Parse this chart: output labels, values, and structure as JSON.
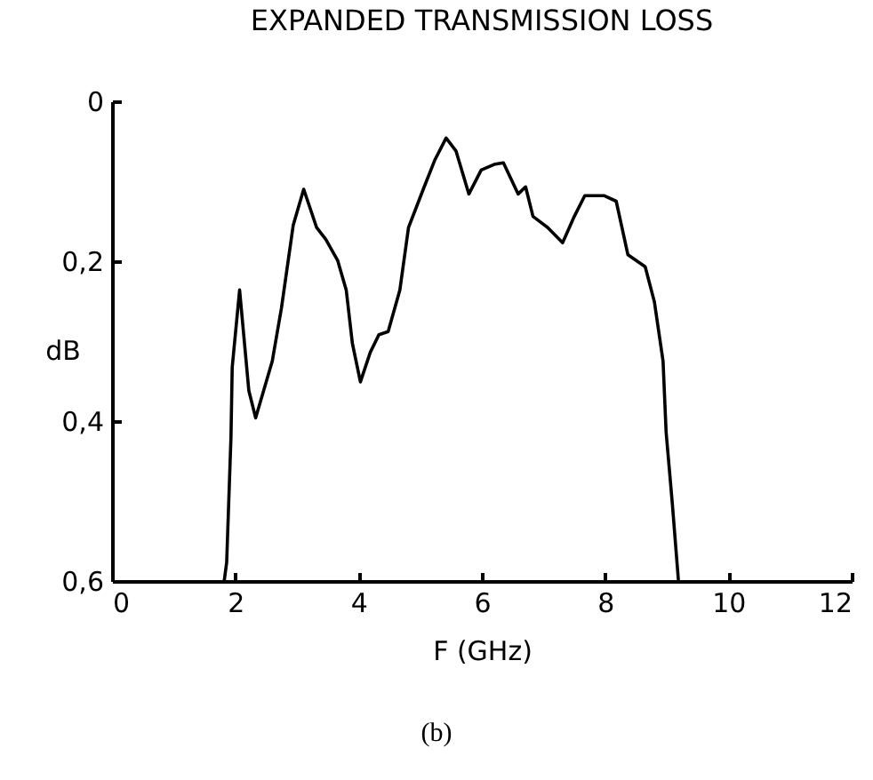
{
  "chart_data": {
    "type": "line",
    "title": "EXPANDED TRANSMISSION LOSS",
    "xlabel": "F (GHz)",
    "ylabel": "dB",
    "x": [
      1.82,
      1.86,
      1.93,
      1.95,
      2.07,
      2.22,
      2.33,
      2.6,
      2.75,
      2.94,
      3.11,
      3.32,
      3.47,
      3.66,
      3.8,
      3.9,
      4.03,
      4.19,
      4.33,
      4.48,
      4.67,
      4.81,
      5.05,
      5.24,
      5.42,
      5.58,
      5.79,
      5.99,
      6.2,
      6.35,
      6.59,
      6.71,
      6.83,
      7.07,
      7.31,
      7.5,
      7.67,
      7.98,
      8.18,
      8.37,
      8.65,
      8.8,
      8.94,
      8.99,
      9.09,
      9.19
    ],
    "series": [
      {
        "color": "#000000",
        "values": [
          0.6,
          0.577,
          0.42,
          0.333,
          0.236,
          0.362,
          0.396,
          0.325,
          0.258,
          0.155,
          0.11,
          0.158,
          0.173,
          0.199,
          0.236,
          0.303,
          0.351,
          0.314,
          0.292,
          0.288,
          0.236,
          0.158,
          0.11,
          0.073,
          0.046,
          0.062,
          0.116,
          0.086,
          0.079,
          0.077,
          0.116,
          0.107,
          0.144,
          0.158,
          0.177,
          0.144,
          0.118,
          0.118,
          0.125,
          0.192,
          0.207,
          0.251,
          0.325,
          0.414,
          0.503,
          0.6
        ]
      }
    ],
    "xlim": [
      0,
      12
    ],
    "xticks": [
      0,
      2,
      4,
      6,
      8,
      10,
      12
    ],
    "ylim": [
      0.6,
      0
    ],
    "yticks": [
      0,
      {
        "value": 0.2,
        "label": "0,2"
      },
      {
        "value": 0.4,
        "label": "0,4"
      },
      {
        "value": 0.6,
        "label": "0,6"
      }
    ],
    "annotations": [
      "(b)"
    ]
  }
}
